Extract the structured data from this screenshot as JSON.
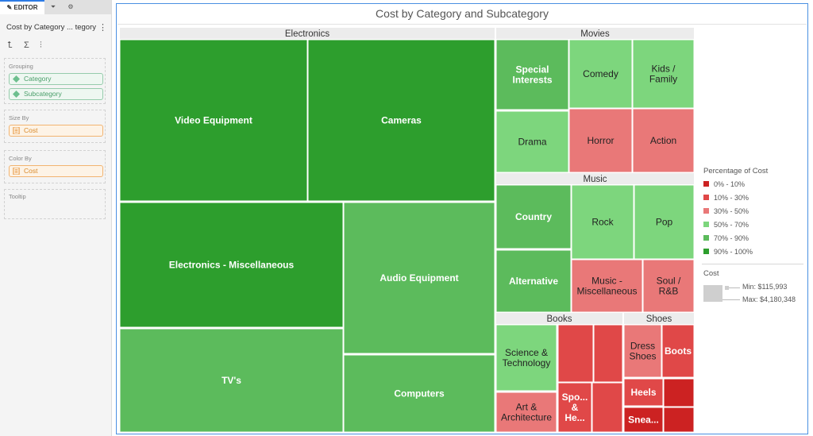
{
  "editor": {
    "tabs": [
      {
        "label": "EDITOR",
        "icon": "pencil-icon"
      },
      {
        "label": "",
        "icon": "filter-icon"
      },
      {
        "label": "",
        "icon": "gear-icon"
      }
    ],
    "title": "Cost by Category ... tegory",
    "more_icon": "⋮",
    "tools": [
      "⮤",
      "Σ",
      "⫶"
    ],
    "grouping_label": "Grouping",
    "grouping": [
      "Category",
      "Subcategory"
    ],
    "size_by_label": "Size By",
    "size_by": "Cost",
    "color_by_label": "Color By",
    "color_by": "Cost",
    "tooltip_label": "Tooltip"
  },
  "chart_data": {
    "type": "treemap",
    "title": "Cost by Category and Subcategory",
    "size_measure": "Cost",
    "color_measure": "Percentage of Cost",
    "groups": [
      {
        "name": "Electronics",
        "children": [
          {
            "name": "Video Equipment",
            "color": "#2d9e2d"
          },
          {
            "name": "Cameras",
            "color": "#2d9e2d"
          },
          {
            "name": "Electronics - Miscellaneous",
            "color": "#2d9e2d"
          },
          {
            "name": "Audio Equipment",
            "color": "#5cbb5c"
          },
          {
            "name": "TV's",
            "color": "#5cbb5c"
          },
          {
            "name": "Computers",
            "color": "#5cbb5c"
          }
        ]
      },
      {
        "name": "Movies",
        "children": [
          {
            "name": "Special Interests",
            "color": "#5cbb5c"
          },
          {
            "name": "Comedy",
            "color": "#7dd67d"
          },
          {
            "name": "Kids / Family",
            "color": "#7dd67d"
          },
          {
            "name": "Drama",
            "color": "#7dd67d"
          },
          {
            "name": "Horror",
            "color": "#e97878"
          },
          {
            "name": "Action",
            "color": "#e97878"
          }
        ]
      },
      {
        "name": "Music",
        "children": [
          {
            "name": "Country",
            "color": "#5cbb5c"
          },
          {
            "name": "Rock",
            "color": "#7dd67d"
          },
          {
            "name": "Pop",
            "color": "#7dd67d"
          },
          {
            "name": "Alternative",
            "color": "#5cbb5c"
          },
          {
            "name": "Music - Miscellaneous",
            "color": "#e97878"
          },
          {
            "name": "Soul / R&B",
            "color": "#e97878"
          }
        ]
      },
      {
        "name": "Books",
        "children": [
          {
            "name": "Science & Technology",
            "color": "#7dd67d"
          },
          {
            "name": "Art & Architecture",
            "color": "#e97878"
          },
          {
            "name": "",
            "color": "#e04848"
          },
          {
            "name": "",
            "color": "#e04848"
          },
          {
            "name": "Spo... & He...",
            "color": "#e04848"
          },
          {
            "name": "",
            "color": "#e04848"
          }
        ]
      },
      {
        "name": "Shoes",
        "children": [
          {
            "name": "Dress Shoes",
            "color": "#e97878"
          },
          {
            "name": "Boots",
            "color": "#e04848"
          },
          {
            "name": "Heels",
            "color": "#e04848"
          },
          {
            "name": "",
            "color": "#cc2222"
          },
          {
            "name": "Snea...",
            "color": "#cc2222"
          },
          {
            "name": "",
            "color": "#cc2222"
          }
        ]
      }
    ],
    "legend": {
      "title": "Percentage of Cost",
      "items": [
        {
          "label": "0% - 10%",
          "color": "#cc2222"
        },
        {
          "label": "10% - 30%",
          "color": "#e04848"
        },
        {
          "label": "30% - 50%",
          "color": "#e97878"
        },
        {
          "label": "50% - 70%",
          "color": "#7dd67d"
        },
        {
          "label": "70% - 90%",
          "color": "#5cbb5c"
        },
        {
          "label": "90% - 100%",
          "color": "#2d9e2d"
        }
      ],
      "placement": "right"
    },
    "size_legend": {
      "title": "Cost",
      "min_label": "Min: $115,993",
      "max_label": "Max: $4,180,348"
    }
  }
}
